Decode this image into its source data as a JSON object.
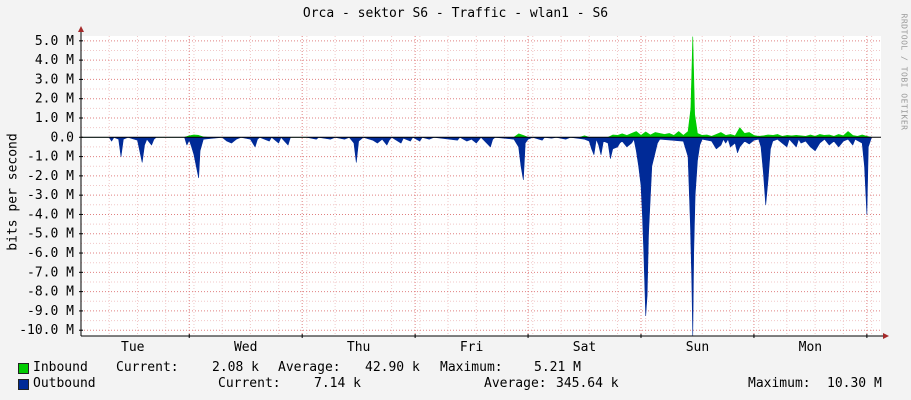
{
  "title": "Orca - sektor S6 - Traffic - wlan1 - S6",
  "watermark": "RRDTOOL / TOBI OETIKER",
  "colors": {
    "background": "#f3f3f3",
    "canvas": "#ffffff",
    "inbound": "#00cc00",
    "outbound": "#002a97",
    "grid_major": "#e08080",
    "grid_minor": "#f0c8c8",
    "axis": "#000000",
    "arrow": "#a52a2a"
  },
  "legend": {
    "inbound": {
      "label": "Inbound",
      "current_label": "Current:",
      "current_value": "2.08 k",
      "average_label": "Average:",
      "average_value": "42.90 k",
      "maximum_label": "Maximum:",
      "maximum_value": "5.21 M"
    },
    "outbound": {
      "label": "Outbound",
      "current_label": "Current:",
      "current_value": "7.14 k",
      "average_label": "Average:",
      "average_value": "345.64 k",
      "maximum_label": "Maximum:",
      "maximum_value": "10.30 M"
    }
  },
  "chart_data": {
    "type": "area",
    "title": "Orca - sektor S6 - Traffic - wlan1 - S6",
    "ylabel": "bits per second",
    "xlabel": "",
    "ylim": [
      -10.3,
      5.25
    ],
    "y_ticks": [
      5,
      4,
      3,
      2,
      1,
      0,
      -1,
      -2,
      -3,
      -4,
      -5,
      -6,
      -7,
      -8,
      -9,
      -10
    ],
    "y_tick_labels": [
      "5.0 M",
      "4.0 M",
      "3.0 M",
      "2.0 M",
      "1.0 M",
      "0.0",
      "-1.0 M",
      "-2.0 M",
      "-3.0 M",
      "-4.0 M",
      "-5.0 M",
      "-6.0 M",
      "-7.0 M",
      "-8.0 M",
      "-9.0 M",
      "-10.0 M"
    ],
    "x_unit": "hours",
    "xlim": [
      0,
      170
    ],
    "x_ticks": [
      {
        "label": "Tue",
        "x": 11
      },
      {
        "label": "Wed",
        "x": 35
      },
      {
        "label": "Thu",
        "x": 59
      },
      {
        "label": "Fri",
        "x": 83
      },
      {
        "label": "Sat",
        "x": 107
      },
      {
        "label": "Sun",
        "x": 131
      },
      {
        "label": "Mon",
        "x": 155
      }
    ],
    "day_lines": [
      23,
      47,
      71,
      95,
      119,
      143,
      167
    ],
    "grid": true,
    "series": [
      {
        "name": "Inbound",
        "points": [
          [
            0,
            0
          ],
          [
            22,
            0
          ],
          [
            23,
            0.08
          ],
          [
            24,
            0.12
          ],
          [
            25,
            0.1
          ],
          [
            26,
            0.02
          ],
          [
            27,
            0
          ],
          [
            92,
            0
          ],
          [
            93,
            0.18
          ],
          [
            94,
            0.1
          ],
          [
            95,
            0
          ],
          [
            106,
            0
          ],
          [
            107,
            0.08
          ],
          [
            108,
            0
          ],
          [
            112,
            0
          ],
          [
            113,
            0.12
          ],
          [
            114,
            0.1
          ],
          [
            115,
            0.18
          ],
          [
            116,
            0.1
          ],
          [
            117,
            0.2
          ],
          [
            118,
            0.3
          ],
          [
            119,
            0.1
          ],
          [
            120,
            0.28
          ],
          [
            121,
            0.12
          ],
          [
            122,
            0.25
          ],
          [
            124,
            0.15
          ],
          [
            125,
            0.2
          ],
          [
            126,
            0.1
          ],
          [
            127,
            0.3
          ],
          [
            128,
            0.1
          ],
          [
            129,
            0.3
          ],
          [
            129.6,
            1.5
          ],
          [
            130,
            5.21
          ],
          [
            130.4,
            1.2
          ],
          [
            131,
            0.2
          ],
          [
            132,
            0.1
          ],
          [
            133,
            0.12
          ],
          [
            134,
            0.05
          ],
          [
            135,
            0.15
          ],
          [
            136,
            0.25
          ],
          [
            137,
            0.1
          ],
          [
            138,
            0.15
          ],
          [
            139,
            0.08
          ],
          [
            140,
            0.5
          ],
          [
            141,
            0.2
          ],
          [
            142,
            0.25
          ],
          [
            143,
            0.1
          ],
          [
            144,
            0.05
          ],
          [
            145,
            0.08
          ],
          [
            146,
            0.12
          ],
          [
            147,
            0.1
          ],
          [
            148,
            0.15
          ],
          [
            149,
            0.05
          ],
          [
            150,
            0.1
          ],
          [
            151,
            0.08
          ],
          [
            152,
            0.1
          ],
          [
            154,
            0.05
          ],
          [
            155,
            0.12
          ],
          [
            156,
            0.05
          ],
          [
            157,
            0.15
          ],
          [
            158,
            0.1
          ],
          [
            159,
            0.12
          ],
          [
            160,
            0.05
          ],
          [
            161,
            0.15
          ],
          [
            162,
            0.08
          ],
          [
            163,
            0.3
          ],
          [
            164,
            0.1
          ],
          [
            165,
            0.05
          ],
          [
            166,
            0.12
          ],
          [
            167,
            0.05
          ],
          [
            168,
            0
          ]
        ]
      },
      {
        "name": "Outbound",
        "points": [
          [
            0,
            0
          ],
          [
            6,
            0
          ],
          [
            6.5,
            -0.2
          ],
          [
            7,
            0
          ],
          [
            8,
            -0.1
          ],
          [
            8.5,
            -1
          ],
          [
            9,
            -0.1
          ],
          [
            10,
            0
          ],
          [
            12,
            -0.15
          ],
          [
            13,
            -1.3
          ],
          [
            13.5,
            -0.4
          ],
          [
            14,
            -0.1
          ],
          [
            15,
            -0.4
          ],
          [
            15.5,
            -0.1
          ],
          [
            16,
            0
          ],
          [
            22,
            0
          ],
          [
            22.5,
            -0.4
          ],
          [
            23,
            -0.15
          ],
          [
            23.5,
            -0.5
          ],
          [
            24,
            -0.9
          ],
          [
            24.5,
            -1.5
          ],
          [
            25,
            -2.1
          ],
          [
            25.3,
            -0.7
          ],
          [
            26,
            -0.1
          ],
          [
            30,
            0
          ],
          [
            31,
            -0.2
          ],
          [
            32,
            -0.3
          ],
          [
            33,
            -0.1
          ],
          [
            34,
            0
          ],
          [
            36,
            -0.1
          ],
          [
            37,
            -0.5
          ],
          [
            37.5,
            -0.1
          ],
          [
            38,
            0
          ],
          [
            40,
            -0.2
          ],
          [
            40.5,
            0
          ],
          [
            42,
            -0.3
          ],
          [
            42.5,
            0
          ],
          [
            44,
            -0.4
          ],
          [
            44.5,
            0
          ],
          [
            48,
            0
          ],
          [
            50,
            -0.1
          ],
          [
            50.5,
            0
          ],
          [
            53,
            -0.1
          ],
          [
            54,
            0
          ],
          [
            56,
            -0.1
          ],
          [
            57,
            0
          ],
          [
            58,
            -0.3
          ],
          [
            58.5,
            -1.3
          ],
          [
            59,
            -0.2
          ],
          [
            60,
            0
          ],
          [
            62,
            -0.15
          ],
          [
            63,
            -0.3
          ],
          [
            64,
            -0.1
          ],
          [
            65,
            -0.4
          ],
          [
            65.5,
            -0.15
          ],
          [
            66,
            0
          ],
          [
            68,
            -0.3
          ],
          [
            68.5,
            -0.05
          ],
          [
            70,
            -0.2
          ],
          [
            70.5,
            0
          ],
          [
            72,
            -0.2
          ],
          [
            72.5,
            0
          ],
          [
            74,
            -0.1
          ],
          [
            75,
            0
          ],
          [
            80,
            -0.15
          ],
          [
            80.5,
            0
          ],
          [
            82,
            -0.2
          ],
          [
            83,
            -0.1
          ],
          [
            84,
            -0.3
          ],
          [
            85,
            0
          ],
          [
            87,
            -0.5
          ],
          [
            87.5,
            -0.1
          ],
          [
            88,
            0
          ],
          [
            92,
            -0.1
          ],
          [
            93,
            -0.5
          ],
          [
            93.5,
            -1.5
          ],
          [
            94,
            -2.2
          ],
          [
            94.4,
            -0.3
          ],
          [
            95,
            -0.1
          ],
          [
            96,
            0
          ],
          [
            98,
            -0.15
          ],
          [
            98.5,
            0
          ],
          [
            100,
            -0.05
          ],
          [
            101,
            0
          ],
          [
            103,
            -0.1
          ],
          [
            104,
            0
          ],
          [
            107,
            -0.1
          ],
          [
            108,
            -0.2
          ],
          [
            108.5,
            -0.6
          ],
          [
            109,
            -0.9
          ],
          [
            109.5,
            -0.1
          ],
          [
            110,
            -0.4
          ],
          [
            110.5,
            -0.9
          ],
          [
            111,
            -0.2
          ],
          [
            112,
            -0.3
          ],
          [
            112.5,
            -1.1
          ],
          [
            113,
            -0.6
          ],
          [
            114,
            -0.5
          ],
          [
            114.5,
            -0.3
          ],
          [
            115,
            -0.2
          ],
          [
            116,
            -0.5
          ],
          [
            117,
            -0.3
          ],
          [
            117.5,
            -0.1
          ],
          [
            118,
            -0.7
          ],
          [
            118.5,
            -1.5
          ],
          [
            119,
            -2.5
          ],
          [
            119.3,
            -4
          ],
          [
            119.6,
            -6
          ],
          [
            120,
            -9.25
          ],
          [
            120.3,
            -8.2
          ],
          [
            120.6,
            -5
          ],
          [
            121,
            -3
          ],
          [
            121.3,
            -1.5
          ],
          [
            122,
            -0.8
          ],
          [
            122.5,
            -0.3
          ],
          [
            123,
            -0.1
          ],
          [
            128,
            -0.2
          ],
          [
            129,
            -1
          ],
          [
            129.5,
            -4.5
          ],
          [
            129.8,
            -7.5
          ],
          [
            130,
            -10.3
          ],
          [
            130.2,
            -6
          ],
          [
            130.5,
            -3
          ],
          [
            131,
            -1.2
          ],
          [
            131.5,
            -0.4
          ],
          [
            132,
            -0.1
          ],
          [
            134,
            -0.2
          ],
          [
            135,
            -0.6
          ],
          [
            136,
            -0.4
          ],
          [
            136.5,
            -0.1
          ],
          [
            137,
            -0.3
          ],
          [
            137.5,
            -0.1
          ],
          [
            138,
            -0.5
          ],
          [
            139,
            -0.3
          ],
          [
            139.5,
            -0.8
          ],
          [
            140,
            -0.5
          ],
          [
            141,
            -0.2
          ],
          [
            142,
            -0.35
          ],
          [
            143,
            -0.15
          ],
          [
            144,
            -0.1
          ],
          [
            144.5,
            -0.5
          ],
          [
            145,
            -1.8
          ],
          [
            145.5,
            -3.5
          ],
          [
            146,
            -2.2
          ],
          [
            146.5,
            -0.6
          ],
          [
            147,
            -0.2
          ],
          [
            148,
            -0.1
          ],
          [
            150,
            -0.5
          ],
          [
            150.5,
            -0.1
          ],
          [
            152,
            -0.5
          ],
          [
            152.5,
            -0.1
          ],
          [
            153,
            -0.3
          ],
          [
            154,
            -0.2
          ],
          [
            155,
            -0.5
          ],
          [
            156,
            -0.7
          ],
          [
            157,
            -0.3
          ],
          [
            158,
            -0.1
          ],
          [
            159,
            -0.4
          ],
          [
            160,
            -0.2
          ],
          [
            161,
            -0.5
          ],
          [
            162,
            -0.2
          ],
          [
            163,
            -0.1
          ],
          [
            164,
            -0.4
          ],
          [
            164.5,
            -0.1
          ],
          [
            166,
            -0.3
          ],
          [
            166.5,
            -1.5
          ],
          [
            167,
            -4
          ],
          [
            167.3,
            -0.5
          ],
          [
            168,
            0
          ]
        ]
      }
    ]
  }
}
